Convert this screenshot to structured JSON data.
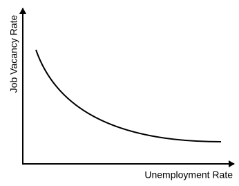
{
  "axes": {
    "y_label": "Job Vacancy Rate",
    "x_label": "Unemployment Rate"
  }
}
